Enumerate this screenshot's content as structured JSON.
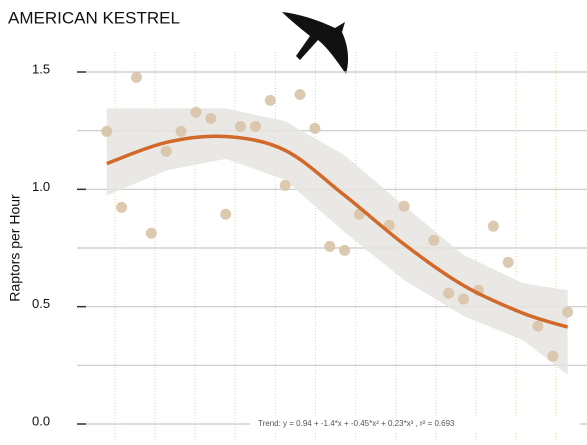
{
  "chart_data": {
    "type": "scatter",
    "title": "AMERICAN KESTREL",
    "y_label": "Raptors per Hour",
    "annotation": "Trend: y = 0.94 + -1.4*x + -0.45*x² + 0.23*x³ , r² = 0.693",
    "x": [
      1,
      2,
      3,
      4,
      5,
      6,
      7,
      8,
      9,
      10,
      11,
      12,
      13,
      14,
      15,
      16,
      17,
      18,
      20,
      21,
      23,
      24,
      25,
      26,
      27,
      28,
      30,
      31,
      32
    ],
    "values": [
      1.247,
      0.923,
      1.477,
      0.813,
      1.162,
      1.247,
      1.328,
      1.302,
      0.894,
      1.268,
      1.268,
      1.379,
      1.017,
      1.404,
      1.26,
      0.757,
      0.74,
      0.894,
      0.847,
      0.928,
      0.783,
      0.557,
      0.532,
      0.57,
      0.843,
      0.689,
      0.417,
      0.289,
      0.477
    ],
    "color": "#d9c3a6",
    "trend": {
      "color": "#d0692a",
      "band_color": "#e6e4e0",
      "x": [
        1,
        5,
        9,
        13,
        17,
        21,
        25,
        29,
        32
      ],
      "values": [
        1.11,
        1.2,
        1.225,
        1.166,
        0.974,
        0.766,
        0.59,
        0.472,
        0.413
      ],
      "lower": [
        0.974,
        1.08,
        1.13,
        1.04,
        0.817,
        0.613,
        0.46,
        0.357,
        0.21
      ],
      "upper": [
        1.345,
        1.345,
        1.345,
        1.29,
        1.145,
        0.93,
        0.72,
        0.6,
        0.57
      ]
    },
    "xlim": [
      -1,
      33.3
    ],
    "ylim": [
      0,
      1.5
    ],
    "yticks": [
      {
        "value": 0,
        "label": "0.0"
      },
      {
        "value": 0.5,
        "label": "0.5"
      },
      {
        "value": 1,
        "label": "1.0"
      },
      1.5
    ],
    "minor_yticks": [
      0.25,
      0.75,
      1.25
    ],
    "grid": true
  }
}
